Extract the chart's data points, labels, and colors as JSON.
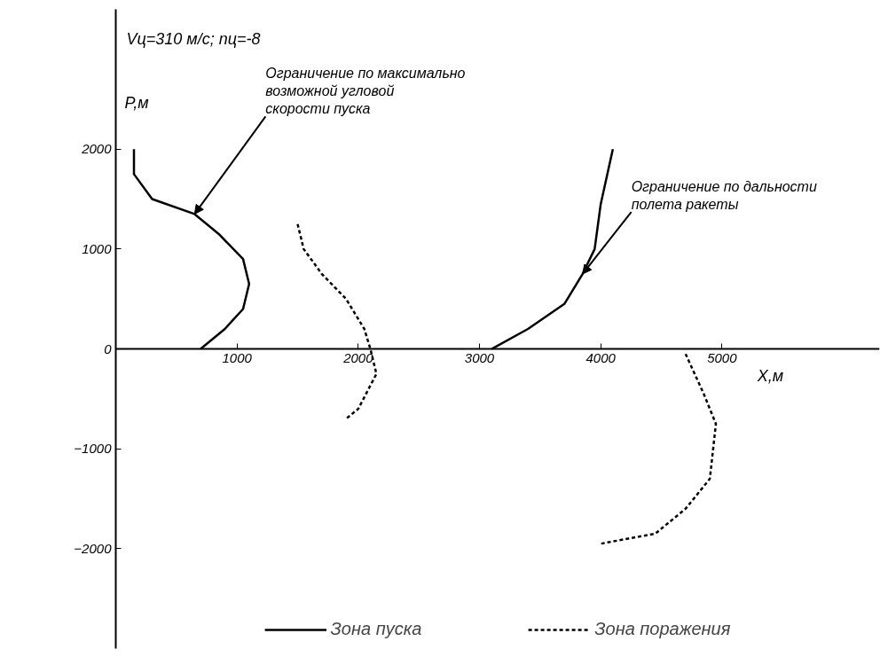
{
  "chart_data": {
    "type": "line",
    "xlabel": "X,м",
    "ylabel": "P,м",
    "xlim": [
      0,
      6300
    ],
    "ylim": [
      -3000,
      3400
    ],
    "xticks": [
      1000,
      2000,
      3000,
      4000,
      5000
    ],
    "yticks": [
      -2000,
      -1000,
      0,
      1000,
      2000
    ],
    "grid": false,
    "legend": "bottom",
    "marker": "none",
    "series": [
      {
        "name": "Зона пуска",
        "color": "#000000",
        "line_style": "solid",
        "x": [
          150,
          150,
          300,
          650,
          850,
          1050,
          1100,
          1050,
          900,
          700
        ],
        "values": [
          2000,
          1750,
          1500,
          1350,
          1150,
          900,
          650,
          400,
          200,
          0
        ]
      },
      {
        "name": "Зона поражения",
        "color": "#000000",
        "line_style": "dashed",
        "x": [
          1500,
          1550,
          1700,
          1900,
          2050,
          2100,
          2150,
          2000,
          1900
        ],
        "values": [
          1250,
          1000,
          750,
          500,
          200,
          0,
          -250,
          -600,
          -700
        ]
      },
      {
        "color": "#000000",
        "line_style": "solid",
        "x": [
          3100,
          3400,
          3700,
          3850,
          3950,
          4000,
          4100
        ],
        "values": [
          0,
          200,
          450,
          750,
          1000,
          1450,
          2000
        ]
      },
      {
        "color": "#000000",
        "line_style": "dashed",
        "x": [
          4700,
          4850,
          4950,
          4900,
          4700,
          4450,
          4000
        ],
        "values": [
          -50,
          -450,
          -750,
          -1300,
          -1600,
          -1850,
          -1950
        ]
      }
    ],
    "annotations": [
      "Vц=310 м/с; nц=-8",
      {
        "text": "Ограничение по максимально\nвозможной угловой\nскорости пуска",
        "x": 650,
        "y": 1350
      },
      {
        "text": "Ограничение по дальности\nполета ракеты",
        "x": 3850,
        "y": 750
      }
    ]
  }
}
